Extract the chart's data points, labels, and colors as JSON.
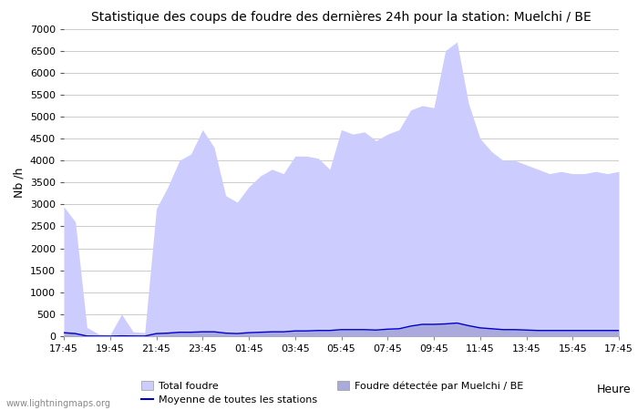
{
  "title": "Statistique des coups de foudre des dernières 24h pour la station: Muelchi / BE",
  "xlabel": "Heure",
  "ylabel": "Nb /h",
  "watermark": "www.lightningmaps.org",
  "ylim": [
    0,
    7000
  ],
  "yticks": [
    0,
    500,
    1000,
    1500,
    2000,
    2500,
    3000,
    3500,
    4000,
    4500,
    5000,
    5500,
    6000,
    6500,
    7000
  ],
  "xtick_labels": [
    "17:45",
    "19:45",
    "21:45",
    "23:45",
    "01:45",
    "03:45",
    "05:45",
    "07:45",
    "09:45",
    "11:45",
    "13:45",
    "15:45",
    "17:45"
  ],
  "total_foudre_color": "#ccccff",
  "muelchi_color": "#aaaadd",
  "moyenne_color": "#0000cc",
  "background_color": "#ffffff",
  "grid_color": "#cccccc",
  "title_fontsize": 10,
  "legend_labels": [
    "Total foudre",
    "Moyenne de toutes les stations",
    "Foudre détectée par Muelchi / BE"
  ],
  "x_values": [
    0,
    1,
    2,
    3,
    4,
    5,
    6,
    7,
    8,
    9,
    10,
    11,
    12,
    13,
    14,
    15,
    16,
    17,
    18,
    19,
    20,
    21,
    22,
    23,
    24,
    25,
    26,
    27,
    28,
    29,
    30,
    31,
    32,
    33,
    34,
    35,
    36,
    37,
    38,
    39,
    40,
    41,
    42,
    43,
    44,
    45,
    46,
    47,
    48
  ],
  "total_foudre": [
    2950,
    2600,
    200,
    50,
    30,
    500,
    100,
    80,
    2900,
    3400,
    4000,
    4150,
    4700,
    4300,
    3200,
    3050,
    3400,
    3650,
    3800,
    3700,
    4100,
    4100,
    4050,
    3800,
    4700,
    4600,
    4650,
    4450,
    4600,
    4700,
    5150,
    5250,
    5200,
    6500,
    6700,
    5300,
    4500,
    4200,
    4000,
    4000,
    3900,
    3800,
    3700,
    3750,
    3700,
    3700,
    3750,
    3700,
    3750
  ],
  "muelchi": [
    100,
    80,
    5,
    2,
    2,
    10,
    4,
    3,
    70,
    80,
    100,
    100,
    120,
    110,
    70,
    60,
    80,
    90,
    100,
    100,
    120,
    120,
    130,
    130,
    150,
    150,
    150,
    140,
    160,
    170,
    230,
    280,
    280,
    290,
    310,
    250,
    200,
    180,
    160,
    160,
    150,
    140,
    140,
    140,
    140,
    140,
    140,
    140,
    140
  ],
  "moyenne": [
    80,
    60,
    5,
    2,
    2,
    8,
    4,
    3,
    60,
    70,
    90,
    90,
    100,
    100,
    70,
    60,
    80,
    90,
    100,
    100,
    120,
    120,
    130,
    130,
    150,
    150,
    150,
    140,
    160,
    170,
    230,
    270,
    270,
    280,
    300,
    240,
    190,
    170,
    150,
    150,
    140,
    130,
    130,
    130,
    130,
    130,
    130,
    130,
    130
  ]
}
